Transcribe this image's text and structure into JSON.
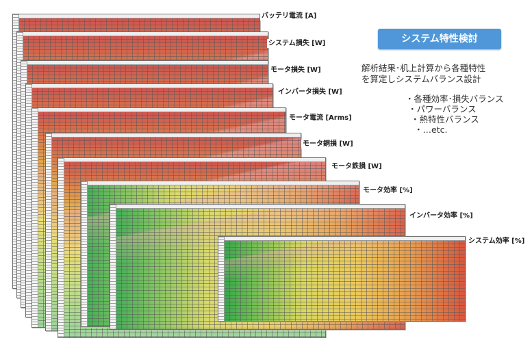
{
  "badge": {
    "title": "システム特性検討"
  },
  "description": {
    "line1": "解析結果･机上計算から各種特性",
    "line2": "を算定しシステムバランス設計"
  },
  "bullets": [
    "・各種効率･損失バランス",
    "・パワーバランス",
    "・熱特性バランス",
    "・…etc."
  ],
  "sheets": [
    {
      "label": "バッテリ電流 [A]",
      "map": "loss"
    },
    {
      "label": "システム損失 [W]",
      "map": "loss"
    },
    {
      "label": "モータ損失 [W]",
      "map": "loss"
    },
    {
      "label": "インバータ損失 [W]",
      "map": "loss"
    },
    {
      "label": "モータ電流 [Arms]",
      "map": "loss"
    },
    {
      "label": "モータ銅損 [W]",
      "map": "loss"
    },
    {
      "label": "モータ鉄損 [W]",
      "map": "loss"
    },
    {
      "label": "モータ効率 [%]",
      "map": "eff"
    },
    {
      "label": "インバータ効率 [%]",
      "map": "eff"
    },
    {
      "label": "システム効率 [%]",
      "map": "eff"
    }
  ]
}
